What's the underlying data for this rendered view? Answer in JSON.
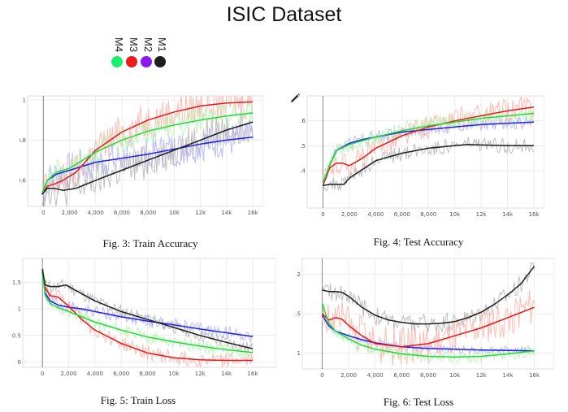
{
  "header": {
    "title": "ISIC Dataset"
  },
  "legend": [
    {
      "label": "M4",
      "color": "#1cf06b"
    },
    {
      "label": "M3",
      "color": "#f01a1a"
    },
    {
      "label": "M2",
      "color": "#8a1af0"
    },
    {
      "label": "M1",
      "color": "#1e1e1e"
    }
  ],
  "figures": {
    "fig3": {
      "caption": "Fig. 3: Train Accuracy"
    },
    "fig4": {
      "caption": "Fig. 4: Test Accuracy"
    },
    "fig5": {
      "caption": "Fig. 5: Train Loss"
    },
    "fig6": {
      "caption": "Fig. 6: Test Loss"
    }
  },
  "series_colors": {
    "M1": "#1e1e1e",
    "M2": "#2020e0",
    "M3": "#e01a1a",
    "M4": "#22d83a",
    "M1_raw": "#b4b4b4",
    "M2_raw": "#aeb0ff",
    "M3_raw": "#ffb0a8",
    "M4_raw": "#b4f4b0"
  },
  "chart_data": [
    {
      "id": "fig3",
      "type": "line",
      "title": "Fig. 3: Train Accuracy",
      "xlim": [
        -1200,
        16800
      ],
      "ylim": [
        0.47,
        1.02
      ],
      "xticks": [
        0,
        2000,
        4000,
        6000,
        8000,
        10000,
        12000,
        14000,
        16000
      ],
      "xtick_labels": [
        "0",
        "2,000",
        "4,000",
        "6,000",
        "8,000",
        "10k",
        "12k",
        "14k",
        "16k"
      ],
      "yticks": [
        0.6,
        0.8,
        1
      ],
      "ytick_labels": [
        "0.6",
        "0.8",
        "1"
      ],
      "noise": {
        "M1": 0.09,
        "M2": 0.09,
        "M3": 0.09,
        "M4": 0.07
      },
      "series": [
        {
          "name": "M1",
          "x": [
            -100,
            300,
            800,
            1500,
            2500,
            4000,
            6000,
            8000,
            10000,
            12000,
            14000,
            16000
          ],
          "y": [
            0.53,
            0.56,
            0.56,
            0.55,
            0.56,
            0.6,
            0.65,
            0.7,
            0.75,
            0.8,
            0.85,
            0.89
          ]
        },
        {
          "name": "M2",
          "x": [
            -100,
            300,
            1000,
            2000,
            3000,
            4000,
            6000,
            8000,
            10000,
            12000,
            14000,
            16000
          ],
          "y": [
            0.53,
            0.6,
            0.63,
            0.65,
            0.67,
            0.69,
            0.71,
            0.73,
            0.755,
            0.78,
            0.8,
            0.815
          ]
        },
        {
          "name": "M3",
          "x": [
            -100,
            300,
            800,
            1500,
            2500,
            4000,
            6000,
            8000,
            10000,
            12000,
            14000,
            16000
          ],
          "y": [
            0.53,
            0.57,
            0.58,
            0.6,
            0.64,
            0.75,
            0.84,
            0.9,
            0.94,
            0.97,
            0.985,
            0.99
          ]
        },
        {
          "name": "M4",
          "x": [
            -100,
            300,
            1000,
            2000,
            3000,
            4000,
            6000,
            8000,
            10000,
            12000,
            14000,
            16000
          ],
          "y": [
            0.53,
            0.6,
            0.64,
            0.66,
            0.7,
            0.74,
            0.8,
            0.845,
            0.875,
            0.9,
            0.92,
            0.935
          ]
        }
      ]
    },
    {
      "id": "fig4",
      "type": "line",
      "title": "Fig. 4: Test Accuracy",
      "xlim": [
        -1200,
        16800
      ],
      "ylim": [
        0.25,
        0.7
      ],
      "xticks": [
        0,
        2000,
        4000,
        6000,
        8000,
        10000,
        12000,
        14000,
        16000
      ],
      "xtick_labels": [
        "0",
        "2,000",
        "4,000",
        "6,000",
        "8,000",
        "10k",
        "12k",
        "14k",
        "16k"
      ],
      "yticks": [
        0.4,
        0.5,
        0.6
      ],
      "ytick_labels": [
        "0.4",
        "0.5",
        "0.6"
      ],
      "noise": {
        "M1": 0.03,
        "M2": 0.025,
        "M3": 0.05,
        "M4": 0.035
      },
      "series": [
        {
          "name": "M1",
          "x": [
            0,
            500,
            1000,
            1600,
            2000,
            3000,
            4000,
            6000,
            8000,
            10000,
            11000,
            12000,
            14000,
            16000
          ],
          "y": [
            0.34,
            0.345,
            0.345,
            0.345,
            0.37,
            0.405,
            0.44,
            0.47,
            0.49,
            0.5,
            0.505,
            0.503,
            0.5,
            0.5
          ]
        },
        {
          "name": "M2",
          "x": [
            0,
            500,
            1000,
            2000,
            3000,
            4000,
            6000,
            8000,
            10000,
            12000,
            14000,
            16000
          ],
          "y": [
            0.35,
            0.42,
            0.48,
            0.51,
            0.525,
            0.535,
            0.555,
            0.565,
            0.575,
            0.585,
            0.59,
            0.595
          ]
        },
        {
          "name": "M3",
          "x": [
            0,
            500,
            1000,
            1500,
            2000,
            3000,
            4000,
            6000,
            8000,
            10000,
            12000,
            14000,
            16000
          ],
          "y": [
            0.34,
            0.41,
            0.43,
            0.43,
            0.42,
            0.45,
            0.49,
            0.54,
            0.575,
            0.6,
            0.62,
            0.64,
            0.655
          ]
        },
        {
          "name": "M4",
          "x": [
            0,
            500,
            1000,
            2000,
            3000,
            4000,
            6000,
            8000,
            10000,
            12000,
            14000,
            16000
          ],
          "y": [
            0.35,
            0.42,
            0.48,
            0.505,
            0.52,
            0.535,
            0.56,
            0.58,
            0.595,
            0.61,
            0.62,
            0.63
          ]
        }
      ]
    },
    {
      "id": "fig5",
      "type": "line",
      "title": "Fig. 5: Train Loss",
      "xlim": [
        -1500,
        17800
      ],
      "ylim": [
        -0.1,
        1.95
      ],
      "xticks": [
        0,
        2000,
        4000,
        6000,
        8000,
        10000,
        12000,
        14000,
        16000
      ],
      "xtick_labels": [
        "0",
        "2,000",
        "4,000",
        "6,000",
        "8,000",
        "10k",
        "12k",
        "14k",
        "16k"
      ],
      "yticks": [
        0,
        0.5,
        1,
        1.5
      ],
      "ytick_labels": [
        "0",
        "0.5",
        "1",
        "1.5"
      ],
      "noise": {
        "M1": 0.12,
        "M2": 0.12,
        "M3": 0.14,
        "M4": 0.12
      },
      "series": [
        {
          "name": "M1",
          "x": [
            0,
            200,
            600,
            1200,
            1800,
            2500,
            4000,
            6000,
            8000,
            10000,
            12000,
            14000,
            16000
          ],
          "y": [
            1.75,
            1.45,
            1.42,
            1.42,
            1.45,
            1.35,
            1.15,
            0.95,
            0.8,
            0.65,
            0.5,
            0.37,
            0.25
          ]
        },
        {
          "name": "M2",
          "x": [
            0,
            200,
            600,
            1200,
            2000,
            3000,
            4000,
            6000,
            8000,
            10000,
            12000,
            14000,
            16000
          ],
          "y": [
            1.7,
            1.3,
            1.15,
            1.07,
            1.03,
            1.0,
            0.95,
            0.85,
            0.77,
            0.7,
            0.62,
            0.55,
            0.48
          ]
        },
        {
          "name": "M3",
          "x": [
            0,
            200,
            600,
            1200,
            2000,
            3000,
            4000,
            6000,
            8000,
            10000,
            12000,
            14000,
            16000
          ],
          "y": [
            1.7,
            1.4,
            1.25,
            1.22,
            1.05,
            0.8,
            0.6,
            0.35,
            0.17,
            0.08,
            0.04,
            0.03,
            0.03
          ]
        },
        {
          "name": "M4",
          "x": [
            0,
            200,
            600,
            1200,
            2000,
            3000,
            4000,
            6000,
            8000,
            10000,
            12000,
            14000,
            16000
          ],
          "y": [
            1.7,
            1.25,
            1.1,
            1.02,
            0.95,
            0.85,
            0.75,
            0.6,
            0.47,
            0.38,
            0.3,
            0.23,
            0.18
          ]
        }
      ]
    },
    {
      "id": "fig6",
      "type": "line",
      "title": "Fig. 6: Test Loss",
      "xlim": [
        -1500,
        17500
      ],
      "ylim": [
        0.8,
        2.2
      ],
      "xticks": [
        0,
        2000,
        4000,
        6000,
        8000,
        10000,
        12000,
        14000,
        16000
      ],
      "xtick_labels": [
        "0",
        "2,000",
        "4,000",
        "6,000",
        "8,000",
        "10k",
        "12k",
        "14k",
        "16k"
      ],
      "yticks": [
        1,
        1.5,
        2
      ],
      "ytick_labels": [
        "1",
        "1.5",
        "2"
      ],
      "noise": {
        "M1": 0.12,
        "M2": 0.05,
        "M3": 0.25,
        "M4": 0.08
      },
      "series": [
        {
          "name": "M1",
          "x": [
            0,
            500,
            1000,
            1500,
            2000,
            3000,
            4000,
            5000,
            6000,
            7000,
            8000,
            9000,
            10000,
            11000,
            12000,
            13000,
            14000,
            15000,
            16000
          ],
          "y": [
            1.8,
            1.78,
            1.78,
            1.77,
            1.72,
            1.58,
            1.48,
            1.42,
            1.39,
            1.37,
            1.37,
            1.38,
            1.4,
            1.45,
            1.52,
            1.62,
            1.74,
            1.88,
            2.1
          ]
        },
        {
          "name": "M2",
          "x": [
            0,
            500,
            1000,
            2000,
            3000,
            4000,
            6000,
            8000,
            10000,
            12000,
            14000,
            16000
          ],
          "y": [
            1.48,
            1.35,
            1.28,
            1.22,
            1.17,
            1.13,
            1.08,
            1.06,
            1.05,
            1.04,
            1.035,
            1.03
          ]
        },
        {
          "name": "M3",
          "x": [
            0,
            500,
            1000,
            1500,
            2000,
            3000,
            4000,
            6000,
            8000,
            10000,
            12000,
            14000,
            16000
          ],
          "y": [
            1.5,
            1.42,
            1.45,
            1.43,
            1.35,
            1.22,
            1.12,
            1.08,
            1.12,
            1.22,
            1.32,
            1.45,
            1.58
          ]
        },
        {
          "name": "M4",
          "x": [
            0,
            500,
            1000,
            2000,
            3000,
            4000,
            6000,
            8000,
            10000,
            12000,
            14000,
            16000
          ],
          "y": [
            1.63,
            1.38,
            1.28,
            1.18,
            1.1,
            1.05,
            0.99,
            0.96,
            0.95,
            0.96,
            0.99,
            1.03
          ]
        }
      ]
    }
  ]
}
